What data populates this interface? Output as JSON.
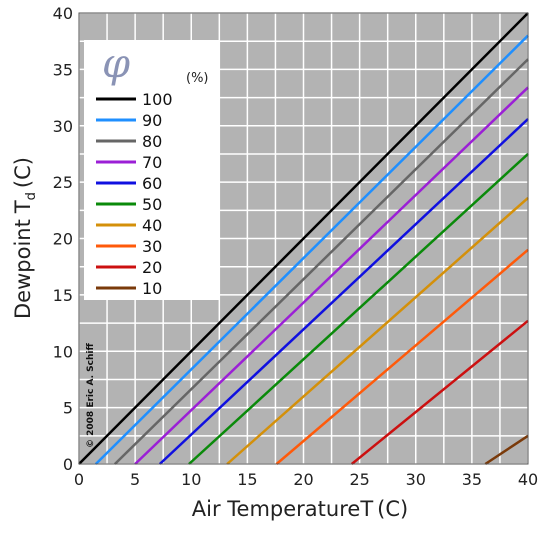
{
  "chart_data": {
    "type": "line",
    "xlabel": "Air Temperature",
    "xlabel_symbol": "T",
    "xlabel_unit": "(C)",
    "ylabel": "Dewpoint",
    "ylabel_symbol": "T",
    "ylabel_subscript": "d",
    "ylabel_unit": "(C)",
    "xlim": [
      0,
      40
    ],
    "ylim": [
      0,
      40
    ],
    "xticks": [
      0,
      5,
      10,
      15,
      20,
      25,
      30,
      35,
      40
    ],
    "yticks": [
      0,
      5,
      10,
      15,
      20,
      25,
      30,
      35,
      40
    ],
    "grid": true,
    "background": "#b3b3b3",
    "legend": {
      "placement": "top-left",
      "symbol": "φ",
      "unit": "(%)"
    },
    "copyright": "© 2008 Eric A. Schiff",
    "series": [
      {
        "name": "100",
        "color": "#000000",
        "x": [
          0,
          40
        ],
        "y": [
          0,
          40
        ]
      },
      {
        "name": "90",
        "color": "#1f8fff",
        "x": [
          1.5,
          40
        ],
        "y": [
          0,
          38.0
        ]
      },
      {
        "name": "80",
        "color": "#666666",
        "x": [
          3.2,
          40
        ],
        "y": [
          0,
          35.9
        ]
      },
      {
        "name": "70",
        "color": "#9b1fd6",
        "x": [
          5.0,
          40
        ],
        "y": [
          0,
          33.4
        ]
      },
      {
        "name": "60",
        "color": "#1010e0",
        "x": [
          7.2,
          40
        ],
        "y": [
          0,
          30.6
        ]
      },
      {
        "name": "50",
        "color": "#0a8a0a",
        "x": [
          9.8,
          40
        ],
        "y": [
          0,
          27.5
        ]
      },
      {
        "name": "40",
        "color": "#d4900a",
        "x": [
          13.2,
          40
        ],
        "y": [
          0,
          23.6
        ]
      },
      {
        "name": "30",
        "color": "#ff5a0a",
        "x": [
          17.6,
          40
        ],
        "y": [
          0,
          19.0
        ]
      },
      {
        "name": "20",
        "color": "#cc1010",
        "x": [
          24.3,
          40
        ],
        "y": [
          0,
          12.7
        ]
      },
      {
        "name": "10",
        "color": "#7a3a0a",
        "x": [
          36.2,
          40
        ],
        "y": [
          0,
          2.5
        ]
      }
    ]
  }
}
